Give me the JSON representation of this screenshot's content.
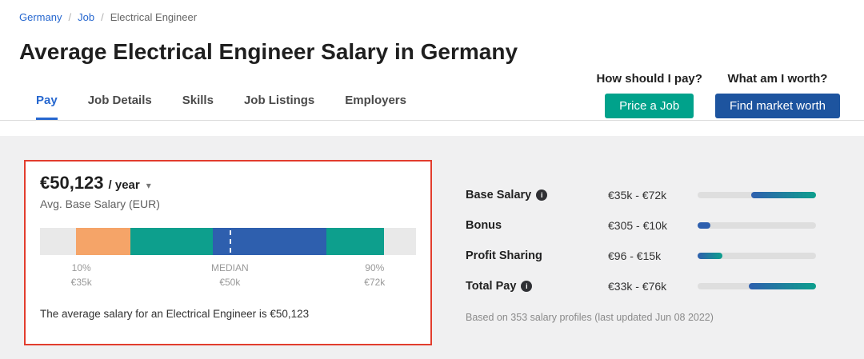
{
  "breadcrumb": {
    "separator": "/",
    "items": [
      {
        "label": "Germany"
      },
      {
        "label": "Job"
      },
      {
        "label": "Electrical Engineer"
      }
    ]
  },
  "page": {
    "title": "Average Electrical Engineer Salary in Germany"
  },
  "tabs": [
    {
      "label": "Pay",
      "active": true
    },
    {
      "label": "Job Details",
      "active": false
    },
    {
      "label": "Skills",
      "active": false
    },
    {
      "label": "Job Listings",
      "active": false
    },
    {
      "label": "Employers",
      "active": false
    }
  ],
  "cta": {
    "pay_question": "How should I pay?",
    "worth_question": "What am I worth?",
    "price_job_label": "Price a Job",
    "find_worth_label": "Find market worth"
  },
  "icons": {
    "info": "i",
    "caret_down": "▾"
  },
  "salary_card": {
    "amount": "€50,123",
    "period": "/ year",
    "subtitle": "Avg. Base Salary (EUR)",
    "summary": "The average salary for an Electrical Engineer is €50,123",
    "percentiles": {
      "p10_label": "10%",
      "p10_value": "€35k",
      "median_label": "MEDIAN",
      "median_value": "€50k",
      "p90_label": "90%",
      "p90_value": "€72k"
    },
    "distribution": {
      "median_pct": 50.5,
      "segments": [
        {
          "name": "track-left",
          "color": "#e9e9e9",
          "width_pct": 9.5
        },
        {
          "name": "p10-p25",
          "color": "#f5a468",
          "width_pct": 14.5
        },
        {
          "name": "p25-median",
          "color": "#0d9f8d",
          "width_pct": 22
        },
        {
          "name": "median-p75",
          "color": "#2e5fae",
          "width_pct": 30.2
        },
        {
          "name": "p75-p90",
          "color": "#0d9f8d",
          "width_pct": 15.4
        },
        {
          "name": "track-right",
          "color": "#e9e9e9",
          "width_pct": 8.4
        }
      ]
    }
  },
  "pay_breakdown": {
    "rows": [
      {
        "label": "Base Salary",
        "has_info": true,
        "range": "€35k - €72k",
        "bar_start": 45,
        "bar_end": 100,
        "bar_color_from": "#2e5fae",
        "bar_color_to": "#0d9f8d"
      },
      {
        "label": "Bonus",
        "has_info": false,
        "range": "€305 - €10k",
        "bar_start": 0,
        "bar_end": 11,
        "bar_color_from": "#2e5fae",
        "bar_color_to": "#2e5fae"
      },
      {
        "label": "Profit Sharing",
        "has_info": false,
        "range": "€96 - €15k",
        "bar_start": 0,
        "bar_end": 21,
        "bar_color_from": "#2e5fae",
        "bar_color_to": "#0d9f8d"
      },
      {
        "label": "Total Pay",
        "has_info": true,
        "range": "€33k - €76k",
        "bar_start": 43,
        "bar_end": 100,
        "bar_color_from": "#2e5fae",
        "bar_color_to": "#0d9f8d"
      }
    ],
    "footnote": "Based on 353 salary profiles (last updated Jun 08 2022)"
  },
  "colors": {
    "link_blue": "#2667cf",
    "teal_button": "#00a28b",
    "navy_button": "#1d549f",
    "highlight_red": "#e23d2e",
    "bar_orange": "#f5a468",
    "bar_teal": "#0d9f8d",
    "bar_blue": "#2e5fae",
    "track_gray": "#e9e9e9"
  }
}
